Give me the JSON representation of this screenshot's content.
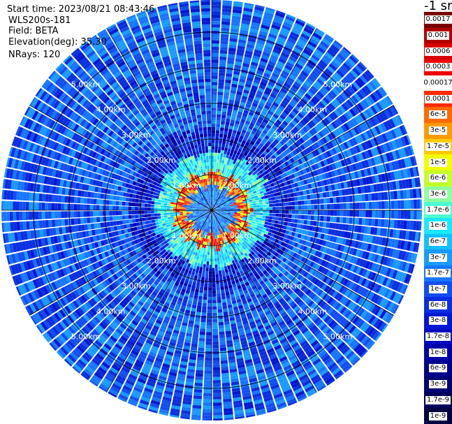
{
  "header": {
    "start_time": "Start time: 2023/08/21 08:43:46",
    "radar": "WLS200s-181",
    "field": "Field: BETA",
    "elevation": "Elevation(deg): 35.30",
    "nrays": "NRays: 120"
  },
  "colorbar": {
    "title": "-1 sr",
    "scale": "log",
    "labels": [
      "0.0017",
      "0.001",
      "0.0006",
      "0.0003",
      "0.00017",
      "0.0001",
      "6e-5",
      "3e-5",
      "1.7e-5",
      "1e-5",
      "6e-6",
      "3e-6",
      "1.7e-6",
      "1e-6",
      "6e-7",
      "3e-7",
      "1.7e-7",
      "1e-7",
      "6e-8",
      "3e-8",
      "1.7e-8",
      "1e-8",
      "6e-9",
      "3e-9",
      "1.7e-9",
      "1e-9"
    ],
    "colors": [
      "#7a0000",
      "#b00000",
      "#d80000",
      "#f00000",
      "#ffffff",
      "#ff2a00",
      "#ff6a00",
      "#ff9a00",
      "#ffca00",
      "#f2ff00",
      "#c4ff2a",
      "#8effa0",
      "#4cffd0",
      "#1ae8ff",
      "#14c0ff",
      "#1a9aff",
      "#1676ff",
      "#124ef2",
      "#0a2ee0",
      "#0018d4",
      "#0008c0",
      "#0000a8",
      "#00008c",
      "#000070",
      "#000058",
      "#000040"
    ]
  },
  "chart_data": {
    "type": "heatmap",
    "projection": "polar PPI",
    "field": "BETA",
    "units": "-1 sr",
    "nrays": 120,
    "elevation_deg": 35.3,
    "range_rings": [
      "1.00km",
      "2.00km",
      "3.00km",
      "4.00km",
      "5.00km"
    ],
    "range_rings_km": [
      1,
      2,
      3,
      4,
      5
    ],
    "max_range_km": 5.9,
    "ring_label_azimuths_deg": [
      45,
      135,
      225,
      315
    ],
    "color_scale": "log",
    "value_range": [
      1e-09,
      0.0017
    ],
    "regions": [
      {
        "range_km": [
          0.0,
          0.7
        ],
        "approx_value": 2e-07
      },
      {
        "range_km": [
          0.7,
          1.05
        ],
        "approx_value": 0.0001
      },
      {
        "range_km": [
          1.05,
          1.6
        ],
        "approx_value": 1e-06
      },
      {
        "range_km": [
          1.6,
          2.3
        ],
        "approx_value": 5e-08
      },
      {
        "range_km": [
          2.3,
          5.9
        ],
        "approx_value": 1e-07
      }
    ]
  }
}
